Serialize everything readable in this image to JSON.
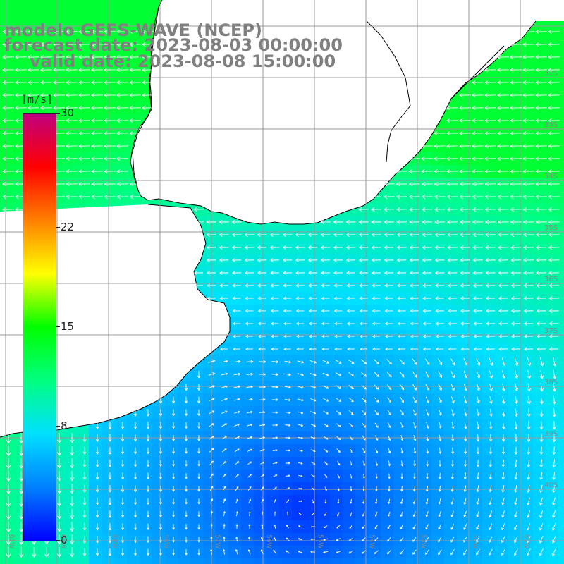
{
  "title": {
    "model": "modelo GEFS-WAVE (NCEP)",
    "forecast": "forecast date: 2023-08-03 00:00:00",
    "valid": "valid date: 2023-08-08 15:00:00"
  },
  "colorbar": {
    "unit": "[m/s]",
    "ticks": [
      "30",
      "22",
      "15",
      "8",
      "0"
    ],
    "tick_values": [
      30,
      22,
      15,
      8,
      0
    ],
    "min": 0,
    "max": 30,
    "colors": [
      "#0000ff",
      "#0080ff",
      "#00e0ff",
      "#00ff80",
      "#00ff00",
      "#ffff00",
      "#ff8000",
      "#ff0000",
      "#c00080"
    ]
  },
  "map": {
    "lon_labels": [
      "61W",
      "60W",
      "59W",
      "58W",
      "57W",
      "56W",
      "55W",
      "54W",
      "53W",
      "52W",
      "51W",
      "50W"
    ],
    "lat_labels": [
      "32S",
      "33S",
      "34S",
      "35S",
      "36S",
      "37S",
      "38S",
      "39S",
      "40S"
    ],
    "land_color": "#ffffff",
    "grid_color": "#999999",
    "coast_color": "#000000",
    "arrow_color": "#ffffff"
  }
}
